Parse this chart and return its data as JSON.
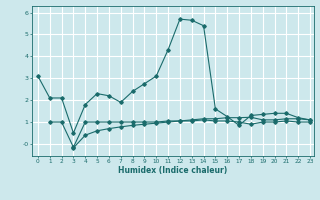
{
  "xlabel": "Humidex (Indice chaleur)",
  "background_color": "#cde8ec",
  "grid_color": "#ffffff",
  "line_color": "#1a6b6b",
  "xlim": [
    -0.5,
    23.3
  ],
  "ylim": [
    -0.55,
    6.3
  ],
  "yticks": [
    0,
    1,
    2,
    3,
    4,
    5,
    6
  ],
  "ytick_labels": [
    "-0",
    "1",
    "2",
    "3",
    "4",
    "5",
    "6"
  ],
  "xticks": [
    0,
    1,
    2,
    3,
    4,
    5,
    6,
    7,
    8,
    9,
    10,
    11,
    12,
    13,
    14,
    15,
    16,
    17,
    18,
    19,
    20,
    21,
    22,
    23
  ],
  "line1_x": [
    0,
    1,
    2,
    3,
    4,
    5,
    6,
    7,
    8,
    9,
    10,
    11,
    12,
    13,
    14,
    15,
    16,
    17,
    18,
    19,
    20,
    21,
    22,
    23
  ],
  "line1_y": [
    3.1,
    2.1,
    2.1,
    0.5,
    1.8,
    2.3,
    2.2,
    1.9,
    2.4,
    2.75,
    3.1,
    4.3,
    5.7,
    5.65,
    5.4,
    1.6,
    1.25,
    0.85,
    1.3,
    1.35,
    1.4,
    1.4,
    1.2,
    1.1
  ],
  "line2_x": [
    1,
    2,
    3,
    4,
    5,
    6,
    7,
    8,
    9,
    10,
    11,
    12,
    13,
    14,
    15,
    16,
    17,
    18,
    19,
    20,
    21,
    22,
    23
  ],
  "line2_y": [
    1.0,
    1.0,
    -0.15,
    1.0,
    1.0,
    1.0,
    1.0,
    1.0,
    1.0,
    1.0,
    1.05,
    1.05,
    1.05,
    1.1,
    1.05,
    1.05,
    1.0,
    0.9,
    1.0,
    1.0,
    1.05,
    1.0,
    1.0
  ],
  "line3_x": [
    3,
    4,
    5,
    6,
    7,
    8,
    9,
    10,
    11,
    12,
    13,
    14,
    15,
    16,
    17,
    18,
    19,
    20,
    21,
    22,
    23
  ],
  "line3_y": [
    -0.18,
    0.4,
    0.6,
    0.7,
    0.78,
    0.85,
    0.9,
    0.95,
    1.0,
    1.05,
    1.1,
    1.15,
    1.15,
    1.2,
    1.2,
    1.22,
    1.1,
    1.1,
    1.15,
    1.15,
    1.1
  ]
}
